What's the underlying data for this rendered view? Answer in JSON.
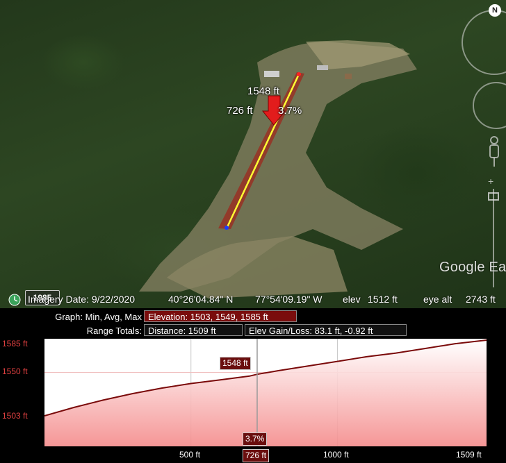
{
  "map": {
    "path_elevation": "1548 ft",
    "path_distance": "726 ft",
    "path_slope": "3.7%",
    "north_label": "N",
    "logo_text": "Google Ea"
  },
  "status": {
    "year": "1985",
    "imagery_date": "Imagery Date: 9/22/2020",
    "latitude": "40°26'04.84\" N",
    "longitude": "77°54'09.19\" W",
    "elev_label": "elev",
    "elev_value": "1512 ft",
    "eye_alt_label": "eye alt",
    "eye_alt_value": "2743 ft"
  },
  "profile": {
    "graph_label": "Graph: Min, Avg, Max",
    "elevation_text": "Elevation: 1503, 1549, 1585 ft",
    "range_label": "Range Totals:",
    "distance_text": "Distance: 1509 ft",
    "gain_loss_text": "Elev Gain/Loss: 83.1 ft, -0.92 ft",
    "marker_elevation": "1548 ft",
    "marker_slope": "3.7%",
    "marker_distance": "726 ft",
    "y_labels": [
      "1585 ft",
      "1550 ft",
      "1503 ft"
    ],
    "x_labels": [
      "500 ft",
      "1000 ft",
      "1509 ft"
    ]
  },
  "chart_data": {
    "type": "area",
    "x": [
      0,
      100,
      200,
      300,
      400,
      500,
      600,
      700,
      726,
      800,
      900,
      1000,
      1100,
      1200,
      1300,
      1400,
      1509
    ],
    "y": [
      1503,
      1512,
      1520,
      1527,
      1533,
      1538,
      1542,
      1546,
      1548,
      1552,
      1557,
      1562,
      1567,
      1571,
      1576,
      1581,
      1585
    ],
    "xlabel": "",
    "ylabel": "",
    "xlim": [
      0,
      1509
    ],
    "ylim": [
      1503,
      1585
    ],
    "marker_x": 726,
    "grid": true,
    "colors": {
      "fill": "#f48b8b",
      "line": "#7a0a0a",
      "marker": "#999999"
    }
  }
}
